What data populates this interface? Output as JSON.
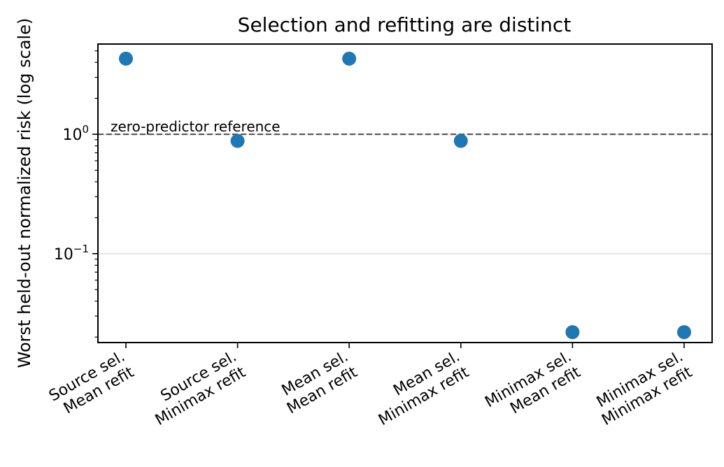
{
  "chart_data": {
    "type": "scatter",
    "title": "Selection and refitting are distinct",
    "xlabel": "",
    "ylabel": "Worst held-out normalized risk (log scale)",
    "yscale": "log",
    "ylim": [
      0.018,
      5.7
    ],
    "grid": "y-major",
    "legend": "none",
    "categories": [
      [
        "Source sel.",
        "Mean refit"
      ],
      [
        "Source sel.",
        "Minimax refit"
      ],
      [
        "Mean sel.",
        "Mean refit"
      ],
      [
        "Mean sel.",
        "Minimax refit"
      ],
      [
        "Minimax sel.",
        "Mean refit"
      ],
      [
        "Minimax sel.",
        "Minimax refit"
      ]
    ],
    "values": [
      4.3,
      0.88,
      4.3,
      0.88,
      0.022,
      0.022
    ],
    "yticks": [
      {
        "value": 1,
        "base": "10",
        "exp": "0"
      },
      {
        "value": 0.1,
        "base": "10",
        "exp": "−1"
      }
    ],
    "reference_line": {
      "value": 1,
      "label": "zero-predictor reference",
      "style": "dashed"
    },
    "colors": {
      "points": "#1f77b4",
      "reference": "#555555",
      "grid": "#e5e5e5"
    }
  }
}
